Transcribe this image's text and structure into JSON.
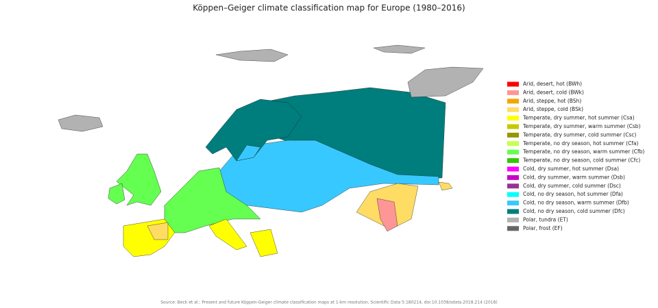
{
  "title": "Köppen–Geiger climate classification map for Europe (1980–2016)",
  "legend": [
    {
      "label": "Arid, desert, hot (BWh)",
      "color": "#ff0000"
    },
    {
      "label": "Arid, desert, cold (BWk)",
      "color": "#ff9696"
    },
    {
      "label": "Arid, steppe, hot (BSh)",
      "color": "#f5a500"
    },
    {
      "label": "Arid, steppe, cold (BSk)",
      "color": "#ffdc64"
    },
    {
      "label": "Temperate, dry summer, hot summer (Csa)",
      "color": "#ffff00"
    },
    {
      "label": "Temperate, dry summer, warm summer (Csb)",
      "color": "#c8c800"
    },
    {
      "label": "Temperate, dry summer, cold summer (Csc)",
      "color": "#969600"
    },
    {
      "label": "Temperate, no dry season, hot summer (Cfa)",
      "color": "#c8ff50"
    },
    {
      "label": "Temperate, no dry season, warm summer (Cfb)",
      "color": "#64ff50"
    },
    {
      "label": "Temperate, no dry season, cold summer (Cfc)",
      "color": "#32c800"
    },
    {
      "label": "Cold, dry summer, hot summer (Dsa)",
      "color": "#ff00ff"
    },
    {
      "label": "Cold, dry summer, warm summer (Dsb)",
      "color": "#c800c8"
    },
    {
      "label": "Cold, dry summer, cold summer (Dsc)",
      "color": "#963296"
    },
    {
      "label": "Cold, no dry season, hot summer (Dfa)",
      "color": "#00ffff"
    },
    {
      "label": "Cold, no dry season, warm summer (Dfb)",
      "color": "#37c8ff"
    },
    {
      "label": "Cold, no dry season, cold summer (Dfc)",
      "color": "#007d7d"
    },
    {
      "label": "Polar, tundra (ET)",
      "color": "#b2b2b2"
    },
    {
      "label": "Polar, frost (EF)",
      "color": "#666666"
    }
  ],
  "source": "Source: Beck et al.: Present and future Köppen-Geiger climate classification maps at 1-km resolution, Scientific Data 5:180214, doi:10.1038/sdata.2018.214 (2018)"
}
